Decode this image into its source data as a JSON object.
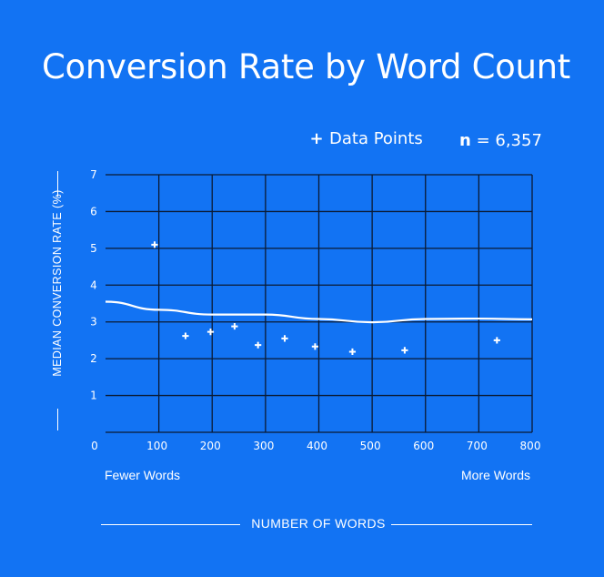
{
  "chart_data": {
    "type": "scatter",
    "title": "Conversion Rate by Word Count",
    "xlabel": "NUMBER OF WORDS",
    "ylabel": "MEDIAN CONVERSION RATE (%)",
    "xlim": [
      0,
      800
    ],
    "ylim": [
      0,
      7
    ],
    "x_ticks": [
      "0",
      "100",
      "200",
      "300",
      "400",
      "500",
      "600",
      "700",
      "800"
    ],
    "y_ticks": [
      "1",
      "2",
      "3",
      "4",
      "5",
      "6",
      "7"
    ],
    "x_min_note": "Fewer Words",
    "x_max_note": "More Words",
    "legend_label": "Data Points",
    "legend_placement": "top-right",
    "n_label": "n",
    "n_value": "= 6,357",
    "grid": true,
    "series": [
      {
        "name": "Data Points",
        "points": [
          {
            "x": 92,
            "y": 5.1
          },
          {
            "x": 150,
            "y": 2.62
          },
          {
            "x": 197,
            "y": 2.73
          },
          {
            "x": 242,
            "y": 2.88
          },
          {
            "x": 286,
            "y": 2.37
          },
          {
            "x": 336,
            "y": 2.55
          },
          {
            "x": 393,
            "y": 2.33
          },
          {
            "x": 463,
            "y": 2.19
          },
          {
            "x": 561,
            "y": 2.23
          },
          {
            "x": 734,
            "y": 2.5
          }
        ]
      },
      {
        "trend": [
          [
            0,
            3.55
          ],
          [
            100,
            3.33
          ],
          [
            200,
            3.2
          ],
          [
            300,
            3.2
          ],
          [
            400,
            3.08
          ],
          [
            500,
            2.99
          ],
          [
            600,
            3.08
          ],
          [
            700,
            3.09
          ],
          [
            800,
            3.07
          ]
        ]
      }
    ]
  },
  "colors": {
    "background": "#1273f3",
    "foreground": "#ffffff",
    "grid": "#0b1a33"
  }
}
